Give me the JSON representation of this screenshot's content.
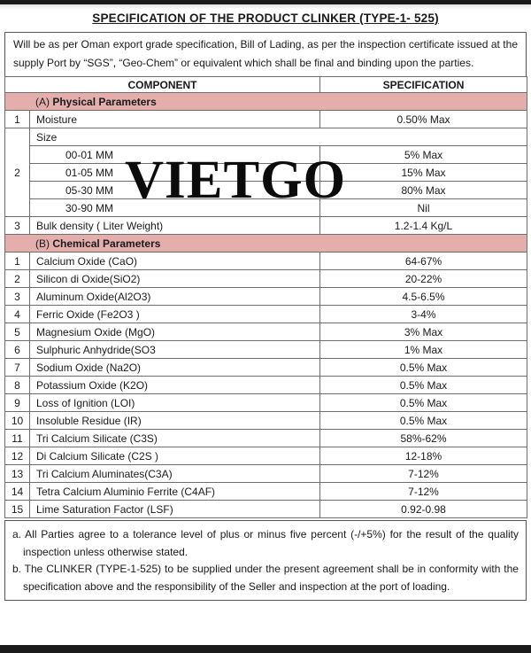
{
  "doc": {
    "title": "SPECIFICATION OF THE PRODUCT CLINKER (TYPE-1- 525)",
    "intro": "Will be as per Oman export grade specification, Bill of Lading, as per the inspection certificate issued at the supply Port by “SGS”, “Geo-Chem” or equivalent which shall be final and binding upon the parties.",
    "watermark": "VIETGO"
  },
  "colors": {
    "section_header_bg": "#e3aeab",
    "bar_color": "#1b1b1b"
  },
  "table": {
    "headers": {
      "component": "COMPONENT",
      "specification": "SPECIFICATION"
    },
    "physical": {
      "section_prefix": "(A)",
      "section_title": "Physical Parameters",
      "rows": [
        {
          "num": "1",
          "component": "Moisture",
          "specification": "0.50% Max"
        },
        {
          "num": "2",
          "component": "Size"
        },
        {
          "num": "3",
          "component": "Bulk density ( Liter Weight)",
          "specification": "1.2-1.4 Kg/L"
        }
      ],
      "size_breakdown": [
        {
          "range": "00-01 MM",
          "value": "5% Max"
        },
        {
          "range": "01-05 MM",
          "value": "15% Max"
        },
        {
          "range": "05-30 MM",
          "value": "80% Max"
        },
        {
          "range": "30-90 MM",
          "value": "Nil"
        }
      ]
    },
    "chemical": {
      "section_prefix": "(B)",
      "section_title": "Chemical Parameters",
      "rows": [
        {
          "num": "1",
          "component": "Calcium Oxide (CaO)",
          "specification": "64-67%"
        },
        {
          "num": "2",
          "component": "Silicon di Oxide(SiO2)",
          "specification": "20-22%"
        },
        {
          "num": "3",
          "component": "Aluminum Oxide(Al2O3)",
          "specification": "4.5-6.5%"
        },
        {
          "num": "4",
          "component": "Ferric Oxide (Fe2O3 )",
          "specification": "3-4%"
        },
        {
          "num": "5",
          "component": "Magnesium Oxide (MgO)",
          "specification": "3% Max"
        },
        {
          "num": "6",
          "component": "Sulphuric Anhydride(SO3",
          "specification": "1% Max"
        },
        {
          "num": "7",
          "component": "Sodium Oxide (Na2O)",
          "specification": "0.5% Max"
        },
        {
          "num": "8",
          "component": "Potassium Oxide (K2O)",
          "specification": "0.5% Max"
        },
        {
          "num": "9",
          "component": "Loss of Ignition (LOI)",
          "specification": "0.5% Max"
        },
        {
          "num": "10",
          "component": "Insoluble Residue (IR)",
          "specification": "0.5% Max"
        },
        {
          "num": "11",
          "component": "Tri Calcium Silicate (C3S)",
          "specification": "58%-62%"
        },
        {
          "num": "12",
          "component": "Di Calcium Silicate (C2S )",
          "specification": "12-18%"
        },
        {
          "num": "13",
          "component": "Tri Calcium Aluminates(C3A)",
          "specification": "7-12%"
        },
        {
          "num": "14",
          "component": "Tetra Calcium Aluminio Ferrite (C4AF)",
          "specification": "7-12%"
        },
        {
          "num": "15",
          "component": "Lime Saturation Factor (LSF)",
          "specification": "0.92-0.98"
        }
      ]
    }
  },
  "notes": [
    {
      "label": "a.",
      "text": "All Parties agree to a tolerance level of plus or minus five percent (-/+5%) for the result of the quality inspection unless otherwise stated."
    },
    {
      "label": "b.",
      "text": "The CLINKER (TYPE-1-525) to be supplied under the present agreement shall be in conformity with the specification above and the responsibility of the Seller and inspection at the port of loading."
    }
  ]
}
